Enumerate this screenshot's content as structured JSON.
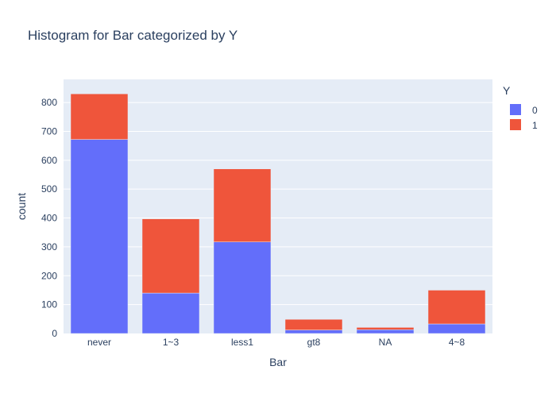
{
  "chart_data": {
    "type": "bar",
    "title": "Histogram for Bar categorized by Y",
    "xlabel": "Bar",
    "ylabel": "count",
    "categories": [
      "never",
      "1~3",
      "less1",
      "gt8",
      "NA",
      "4~8"
    ],
    "ylim": [
      0,
      880
    ],
    "yticks": [
      0,
      100,
      200,
      300,
      400,
      500,
      600,
      700,
      800
    ],
    "ytick_labels": [
      "0",
      "100",
      "200",
      "300",
      "400",
      "500",
      "600",
      "700",
      "800"
    ],
    "stacked": true,
    "grid": true,
    "legend": {
      "title": "Y",
      "position": "top-right"
    },
    "series": [
      {
        "name": "0",
        "color": "#636efa",
        "values": [
          672,
          140,
          317,
          12,
          13,
          33
        ]
      },
      {
        "name": "1",
        "color": "#ef553b",
        "values": [
          158,
          257,
          253,
          37,
          8,
          117
        ]
      }
    ]
  }
}
